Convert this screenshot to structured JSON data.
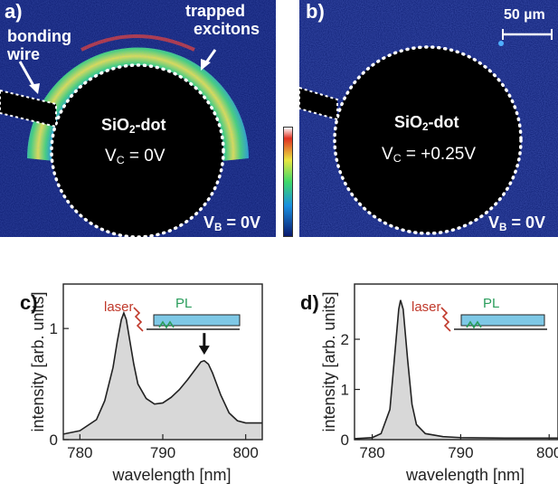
{
  "panel_a": {
    "letter": "a)",
    "annotation_bonding": [
      "bonding",
      "wire"
    ],
    "annotation_trapped": [
      "trapped",
      "excitons"
    ],
    "dot_label_main": "SiO",
    "dot_label_sub": "2",
    "dot_label_tail": "-dot",
    "vc_main": "V",
    "vc_sub": "C",
    "vc_value": " = 0V",
    "vb_main": "V",
    "vb_sub": "B",
    "vb_value": " = 0V"
  },
  "panel_b": {
    "letter": "b)",
    "scale_bar": "50 µm",
    "dot_label_main": "SiO",
    "dot_label_sub": "2",
    "dot_label_tail": "-dot",
    "vc_main": "V",
    "vc_sub": "C",
    "vc_value": " = +0.25V",
    "vb_main": "V",
    "vb_sub": "B",
    "vb_value": " = 0V"
  },
  "colors": {
    "map_background": "#0a1a6e",
    "ring_green": "#3ed86a",
    "ring_yellow": "#e9e640",
    "ring_red": "#e03020",
    "spectrum_fill": "#d8d8d8",
    "inset_blue": "#7ec8e6",
    "laser_red": "#c0392b",
    "pl_green": "#2a9d5c"
  },
  "chart_data": [
    {
      "panel": "c)",
      "type": "area",
      "xlabel": "wavelength [nm]",
      "ylabel": "intensity [arb. units]",
      "xlim": [
        778,
        802
      ],
      "ylim": [
        0,
        1.4
      ],
      "xticks": [
        780,
        790,
        800
      ],
      "yticks": [
        0,
        1
      ],
      "inset_labels": {
        "laser": "laser",
        "pl": "PL"
      },
      "annotation": "arrow at ~795 nm peak",
      "x": [
        778,
        780,
        782,
        783,
        784,
        784.5,
        785,
        785.3,
        785.6,
        786,
        786.5,
        787,
        788,
        789,
        790,
        791,
        792,
        793,
        794,
        794.6,
        795,
        795.5,
        796,
        797,
        798,
        799,
        800,
        802
      ],
      "y": [
        0.05,
        0.08,
        0.18,
        0.35,
        0.65,
        0.88,
        1.08,
        1.14,
        1.08,
        0.9,
        0.68,
        0.5,
        0.37,
        0.32,
        0.33,
        0.38,
        0.45,
        0.54,
        0.64,
        0.7,
        0.71,
        0.68,
        0.6,
        0.4,
        0.24,
        0.17,
        0.15,
        0.15
      ]
    },
    {
      "panel": "d)",
      "type": "area",
      "xlabel": "wavelength [nm]",
      "ylabel": "intensity [arb. units]",
      "xlim": [
        778,
        801
      ],
      "ylim": [
        0,
        3.1
      ],
      "xticks": [
        780,
        790,
        800
      ],
      "yticks": [
        0,
        1,
        2
      ],
      "inset_labels": {
        "laser": "laser",
        "pl": "PL"
      },
      "x": [
        778,
        780,
        781,
        782,
        782.5,
        783,
        783.2,
        783.5,
        784,
        784.5,
        785,
        786,
        788,
        790,
        795,
        801
      ],
      "y": [
        0.02,
        0.04,
        0.12,
        0.6,
        1.6,
        2.6,
        2.78,
        2.6,
        1.6,
        0.7,
        0.3,
        0.12,
        0.06,
        0.04,
        0.03,
        0.03
      ]
    }
  ]
}
